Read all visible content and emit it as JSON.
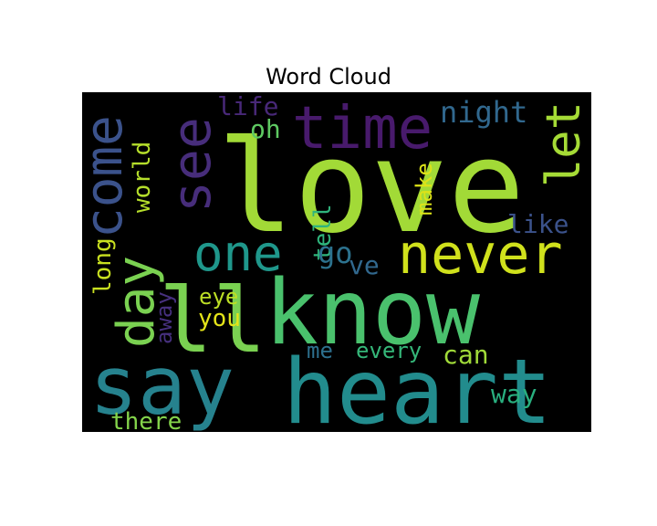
{
  "chart_data": {
    "type": "wordcloud",
    "title": "Word Cloud",
    "background": "#000000",
    "words": [
      {
        "text": "love",
        "color": "#a2da37"
      },
      {
        "text": "know",
        "color": "#4ac16d"
      },
      {
        "text": "heart",
        "color": "#228c8d"
      },
      {
        "text": "say",
        "color": "#26828e"
      },
      {
        "text": "ll",
        "color": "#7ad151"
      },
      {
        "text": "time",
        "color": "#481a6c"
      },
      {
        "text": "never",
        "color": "#d0e11c"
      },
      {
        "text": "one",
        "color": "#1f978b"
      },
      {
        "text": "come",
        "color": "#3b528b"
      },
      {
        "text": "see",
        "color": "#472d7b"
      },
      {
        "text": "let",
        "color": "#a5db36"
      },
      {
        "text": "day",
        "color": "#7ad151"
      },
      {
        "text": "night",
        "color": "#31688e"
      },
      {
        "text": "world",
        "color": "#b5de2b"
      },
      {
        "text": "oh",
        "color": "#5ec962"
      },
      {
        "text": "life",
        "color": "#482878"
      },
      {
        "text": "tell",
        "color": "#2fb47c"
      },
      {
        "text": "make",
        "color": "#dde318"
      },
      {
        "text": "like",
        "color": "#3b528b"
      },
      {
        "text": "go",
        "color": "#2c728e"
      },
      {
        "text": "ve",
        "color": "#31688e"
      },
      {
        "text": "long",
        "color": "#c8e020"
      },
      {
        "text": "away",
        "color": "#46307e"
      },
      {
        "text": "eye",
        "color": "#bddf26"
      },
      {
        "text": "you",
        "color": "#e5e419"
      },
      {
        "text": "me",
        "color": "#2d708e"
      },
      {
        "text": "every",
        "color": "#35b779"
      },
      {
        "text": "can",
        "color": "#a0da39"
      },
      {
        "text": "way",
        "color": "#29af7f"
      },
      {
        "text": "there",
        "color": "#84d44b"
      }
    ]
  }
}
